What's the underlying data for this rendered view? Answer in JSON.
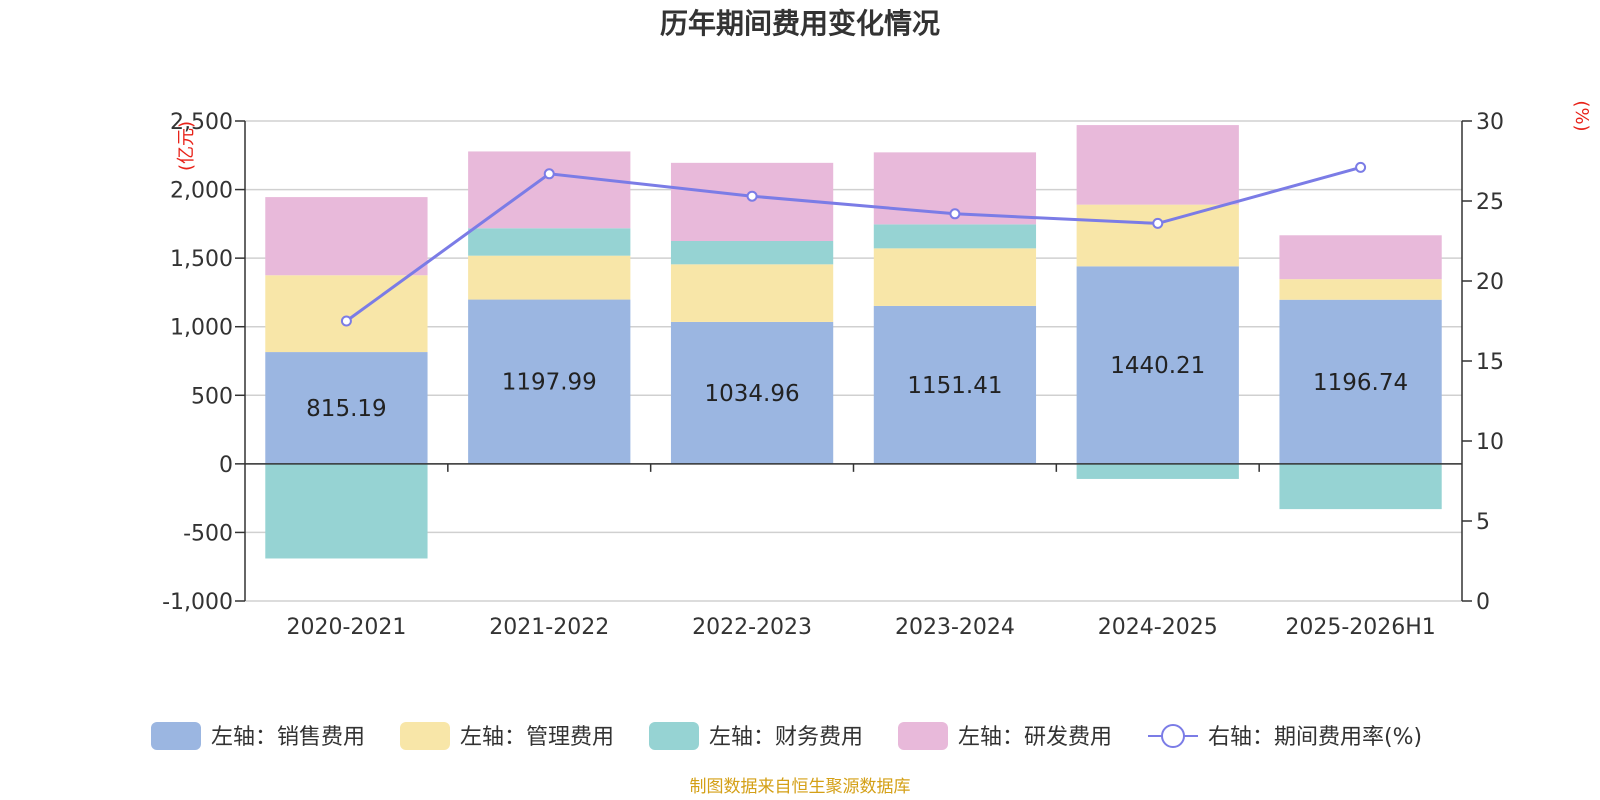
{
  "chart_data": {
    "type": "bar",
    "title": "历年期间费用变化情况",
    "categories": [
      "2020-2021",
      "2021-2022",
      "2022-2023",
      "2023-2024",
      "2024-2025",
      "2025-2026H1"
    ],
    "series": [
      {
        "name": "左轴：销售费用",
        "axis": "left",
        "kind": "stacked-bar",
        "color": "#9bb6e1",
        "values": [
          815.19,
          1197.99,
          1034.96,
          1151.41,
          1440.21,
          1196.74
        ]
      },
      {
        "name": "左轴：管理费用",
        "axis": "left",
        "kind": "stacked-bar",
        "color": "#f8e6a8",
        "values": [
          560,
          320,
          420,
          420,
          450,
          150
        ]
      },
      {
        "name": "左轴：财务费用",
        "axis": "left",
        "kind": "stacked-bar",
        "color": "#96d3d3",
        "values": [
          -690,
          200,
          170,
          175,
          -110,
          -330
        ]
      },
      {
        "name": "左轴：研发费用",
        "axis": "left",
        "kind": "stacked-bar",
        "color": "#e8b9da",
        "values": [
          570,
          560,
          570,
          525,
          580,
          320
        ]
      },
      {
        "name": "右轴：期间费用率(%)",
        "axis": "right",
        "kind": "line",
        "color": "#7b7ce6",
        "values": [
          17.5,
          26.7,
          25.3,
          24.2,
          23.6,
          27.1
        ]
      }
    ],
    "data_labels": [
      "815.19",
      "1197.99",
      "1034.96",
      "1151.41",
      "1440.21",
      "1196.74"
    ],
    "left_axis": {
      "unit": "(亿元)",
      "min": -1000,
      "max": 2500,
      "step": 500,
      "ticks": [
        "2,500",
        "2,000",
        "1,500",
        "1,000",
        "500",
        "0",
        "-500",
        "-1,000"
      ]
    },
    "right_axis": {
      "unit": "(%)",
      "min": 0,
      "max": 30,
      "step": 5,
      "ticks": [
        "30",
        "25",
        "20",
        "15",
        "10",
        "5",
        "0"
      ]
    },
    "unit_color": "#e8231a",
    "grid": true,
    "legend_position": "bottom"
  },
  "source": {
    "text": "制图数据来自恒生聚源数据库",
    "color": "#d4a017"
  }
}
